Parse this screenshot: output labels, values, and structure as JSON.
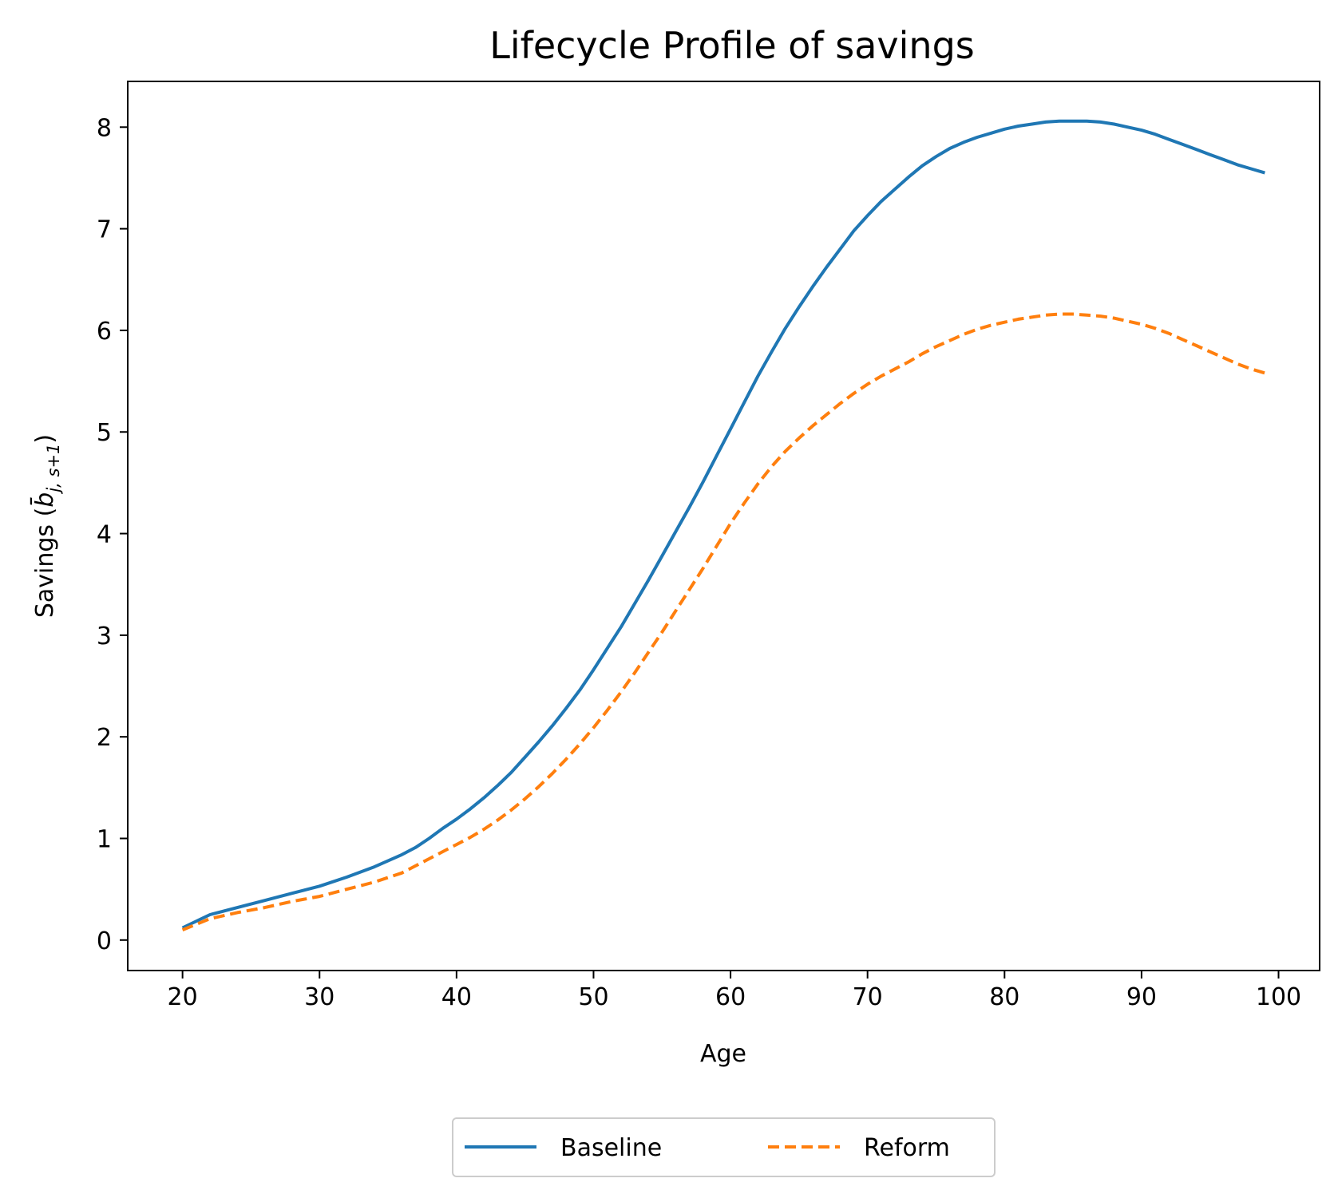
{
  "chart_data": {
    "type": "line",
    "title": "Lifecycle Profile of savings",
    "xlabel": "Age",
    "ylabel": {
      "prefix": "Savings (",
      "symbol": "b̄",
      "subscript": "j, s+1",
      "suffix": ")"
    },
    "xlim": [
      16,
      103
    ],
    "ylim": [
      -0.3,
      8.45
    ],
    "xticks": [
      20,
      30,
      40,
      50,
      60,
      70,
      80,
      90,
      100
    ],
    "yticks": [
      0,
      1,
      2,
      3,
      4,
      5,
      6,
      7,
      8
    ],
    "legend_position": "bottom-center-outside",
    "x": [
      20,
      22,
      24,
      26,
      28,
      30,
      32,
      34,
      36,
      37,
      38,
      39,
      40,
      41,
      42,
      43,
      44,
      45,
      46,
      47,
      48,
      49,
      50,
      51,
      52,
      53,
      54,
      55,
      56,
      57,
      58,
      59,
      60,
      61,
      62,
      63,
      64,
      65,
      66,
      67,
      68,
      69,
      70,
      71,
      72,
      73,
      74,
      75,
      76,
      77,
      78,
      79,
      80,
      81,
      82,
      83,
      84,
      85,
      86,
      87,
      88,
      89,
      90,
      91,
      92,
      93,
      94,
      95,
      96,
      97,
      98,
      99
    ],
    "series": [
      {
        "name": "Baseline",
        "color": "#1f77b4",
        "style": "solid",
        "values": [
          0.12,
          0.25,
          0.32,
          0.39,
          0.46,
          0.53,
          0.62,
          0.72,
          0.84,
          0.91,
          1.0,
          1.1,
          1.19,
          1.29,
          1.4,
          1.52,
          1.65,
          1.8,
          1.95,
          2.11,
          2.28,
          2.46,
          2.66,
          2.87,
          3.08,
          3.31,
          3.54,
          3.78,
          4.02,
          4.26,
          4.51,
          4.77,
          5.03,
          5.29,
          5.55,
          5.79,
          6.02,
          6.23,
          6.43,
          6.62,
          6.8,
          6.98,
          7.13,
          7.27,
          7.39,
          7.51,
          7.62,
          7.71,
          7.79,
          7.85,
          7.9,
          7.94,
          7.98,
          8.01,
          8.03,
          8.05,
          8.06,
          8.06,
          8.06,
          8.05,
          8.03,
          8.0,
          7.97,
          7.93,
          7.88,
          7.83,
          7.78,
          7.73,
          7.68,
          7.63,
          7.59,
          7.55
        ]
      },
      {
        "name": "Reform",
        "color": "#ff7f0e",
        "style": "dashed",
        "values": [
          0.1,
          0.21,
          0.27,
          0.32,
          0.38,
          0.43,
          0.5,
          0.57,
          0.66,
          0.73,
          0.8,
          0.87,
          0.94,
          1.01,
          1.09,
          1.18,
          1.28,
          1.39,
          1.51,
          1.64,
          1.78,
          1.93,
          2.09,
          2.26,
          2.44,
          2.63,
          2.83,
          3.03,
          3.24,
          3.45,
          3.66,
          3.88,
          4.1,
          4.3,
          4.49,
          4.66,
          4.81,
          4.94,
          5.06,
          5.17,
          5.28,
          5.38,
          5.47,
          5.55,
          5.62,
          5.69,
          5.77,
          5.84,
          5.9,
          5.96,
          6.01,
          6.05,
          6.08,
          6.11,
          6.13,
          6.15,
          6.16,
          6.16,
          6.15,
          6.14,
          6.12,
          6.09,
          6.06,
          6.02,
          5.97,
          5.91,
          5.85,
          5.79,
          5.73,
          5.67,
          5.62,
          5.58
        ]
      }
    ]
  }
}
